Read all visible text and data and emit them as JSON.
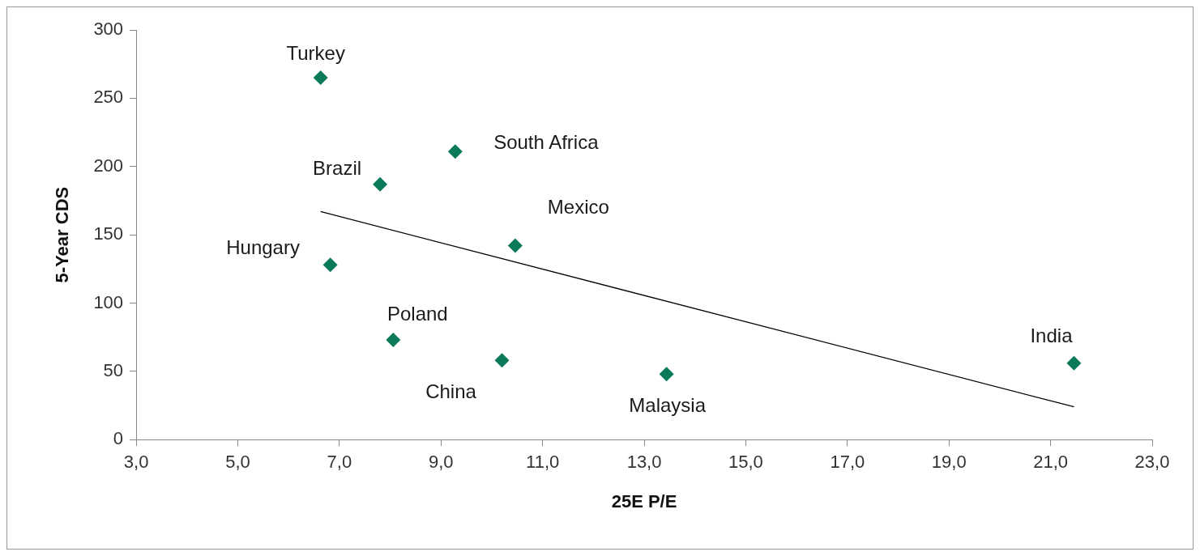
{
  "chart_data": {
    "type": "scatter",
    "xlabel": "25E P/E",
    "ylabel": "5-Year CDS",
    "xlim": [
      3,
      23
    ],
    "xticks": [
      {
        "value": 3,
        "label": "3,0"
      },
      {
        "value": 5,
        "label": "5,0"
      },
      {
        "value": 7,
        "label": "7,0"
      },
      {
        "value": 9,
        "label": "9,0"
      },
      {
        "value": 11,
        "label": "11,0"
      },
      {
        "value": 13,
        "label": "13,0"
      },
      {
        "value": 15,
        "label": "15,0"
      },
      {
        "value": 17,
        "label": "17,0"
      },
      {
        "value": 19,
        "label": "19,0"
      },
      {
        "value": 21,
        "label": "21,0"
      },
      {
        "value": 23,
        "label": "23,0"
      }
    ],
    "ylim": [
      0,
      300
    ],
    "yticks": [
      0,
      50,
      100,
      150,
      200,
      250,
      300
    ],
    "grid": false,
    "legend": false,
    "marker": "diamond",
    "series": [
      {
        "color": "#0b7a5a",
        "x": [
          6.63,
          7.8,
          9.28,
          10.46,
          6.82,
          8.06,
          10.2,
          13.44,
          21.46
        ],
        "values": [
          265,
          187,
          211,
          142,
          128,
          73,
          58,
          48,
          56
        ]
      },
      {
        "type": "line",
        "color": "#000000",
        "marker": "none",
        "x": [
          6.63,
          21.46
        ],
        "values": [
          167,
          24
        ]
      }
    ],
    "annotations": [
      {
        "text": "Turkey",
        "x": 6.63,
        "y": 265
      },
      {
        "text": "Brazil",
        "x": 7.8,
        "y": 187
      },
      {
        "text": "South Africa",
        "x": 9.28,
        "y": 211
      },
      {
        "text": "Mexico",
        "x": 10.46,
        "y": 142
      },
      {
        "text": "Hungary",
        "x": 6.82,
        "y": 128
      },
      {
        "text": "Poland",
        "x": 8.06,
        "y": 73
      },
      {
        "text": "China",
        "x": 10.2,
        "y": 58
      },
      {
        "text": "Malaysia",
        "x": 13.44,
        "y": 48
      },
      {
        "text": "India",
        "x": 21.46,
        "y": 56
      }
    ]
  }
}
